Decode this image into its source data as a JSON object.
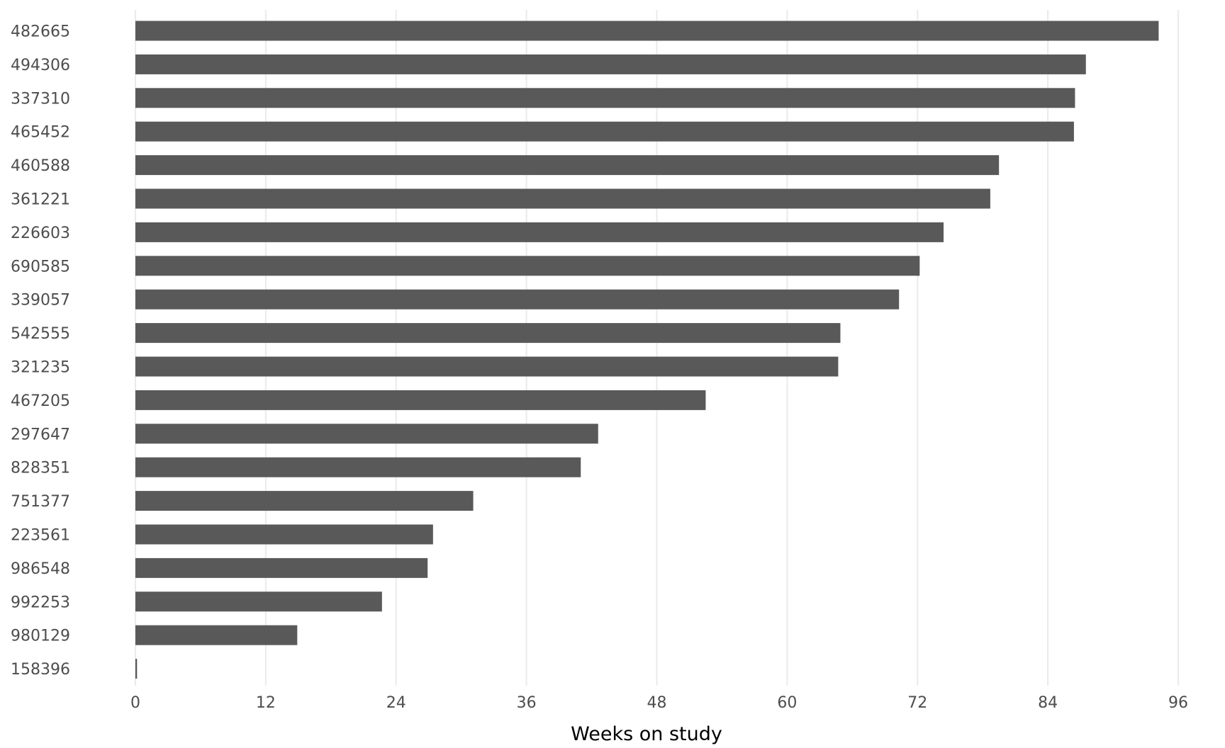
{
  "chart_data": {
    "type": "bar",
    "orientation": "horizontal",
    "categories": [
      "482665",
      "494306",
      "337310",
      "465452",
      "460588",
      "361221",
      "226603",
      "690585",
      "339057",
      "542555",
      "321235",
      "467205",
      "297647",
      "828351",
      "751377",
      "223561",
      "986548",
      "992253",
      "980129",
      "158396"
    ],
    "values": [
      94.2,
      87.5,
      86.5,
      86.4,
      79.5,
      78.7,
      74.4,
      72.2,
      70.3,
      64.9,
      64.7,
      52.5,
      42.6,
      41.0,
      31.1,
      27.4,
      26.9,
      22.7,
      14.9,
      0.15
    ],
    "xlabel": "Weeks on study",
    "ylabel": "",
    "xlim": [
      0,
      96
    ],
    "xticks": [
      0,
      12,
      24,
      36,
      48,
      60,
      72,
      84,
      96
    ],
    "grid": "vertical",
    "legend": "none",
    "colors": {
      "bar": "#595959",
      "grid": "#ebebeb",
      "tick_text": "#4d4d4d",
      "title_text": "#000000"
    }
  }
}
